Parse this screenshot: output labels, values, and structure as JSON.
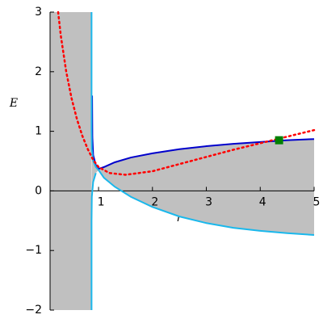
{
  "chart_data": {
    "type": "line",
    "xlabel": "r",
    "ylabel": "E",
    "xlim": [
      0.1,
      5
    ],
    "ylim": [
      -2,
      3
    ],
    "xticks": [
      1,
      2,
      3,
      4,
      5
    ],
    "yticks": [
      3,
      2,
      1,
      0,
      {
        "value": -1,
        "label": "−1"
      },
      {
        "value": -2,
        "label": "−2"
      }
    ],
    "shade_color": "#c0c0c0",
    "series": [
      {
        "color": "#0000cc",
        "style": "solid",
        "x": [
          0.88,
          0.885,
          0.9,
          0.95,
          1.0,
          1.1,
          1.3,
          1.6,
          2,
          2.5,
          3,
          3.5,
          4,
          4.5,
          5
        ],
        "values": [
          1.6,
          0.9,
          0.6,
          0.43,
          0.37,
          0.4,
          0.48,
          0.56,
          0.63,
          0.7,
          0.75,
          0.79,
          0.82,
          0.85,
          0.87
        ]
      },
      {
        "color": "#1ab8ec",
        "style": "solid",
        "x": [
          0.87,
          0.87,
          0.875,
          0.9,
          0.95,
          1.0,
          1.1,
          1.3,
          1.6,
          2,
          2.5,
          3,
          3.5,
          4,
          4.5,
          5,
          null,
          0.87,
          0.87,
          0.875,
          0.9,
          0.95
        ],
        "values": [
          3,
          1.0,
          0.7,
          0.5,
          0.4,
          0.35,
          0.22,
          0.07,
          -0.1,
          -0.27,
          -0.43,
          -0.54,
          -0.62,
          -0.67,
          -0.71,
          -0.74,
          null,
          -2,
          -0.5,
          -0.1,
          0.15,
          0.3
        ]
      },
      {
        "color": "#ff0000",
        "style": "dotted",
        "x": [
          0.25,
          0.3,
          0.4,
          0.5,
          0.6,
          0.7,
          0.8,
          0.9,
          1,
          1.2,
          1.5,
          2,
          2.5,
          3,
          3.5,
          4,
          4.5,
          5
        ],
        "values": [
          3,
          2.6,
          2.0,
          1.55,
          1.2,
          0.92,
          0.7,
          0.52,
          0.4,
          0.3,
          0.27,
          0.33,
          0.45,
          0.57,
          0.69,
          0.8,
          0.91,
          1.02
        ]
      },
      {
        "color": "#008000",
        "marker": "square",
        "x": [
          4.35
        ],
        "values": [
          0.85
        ]
      }
    ]
  }
}
